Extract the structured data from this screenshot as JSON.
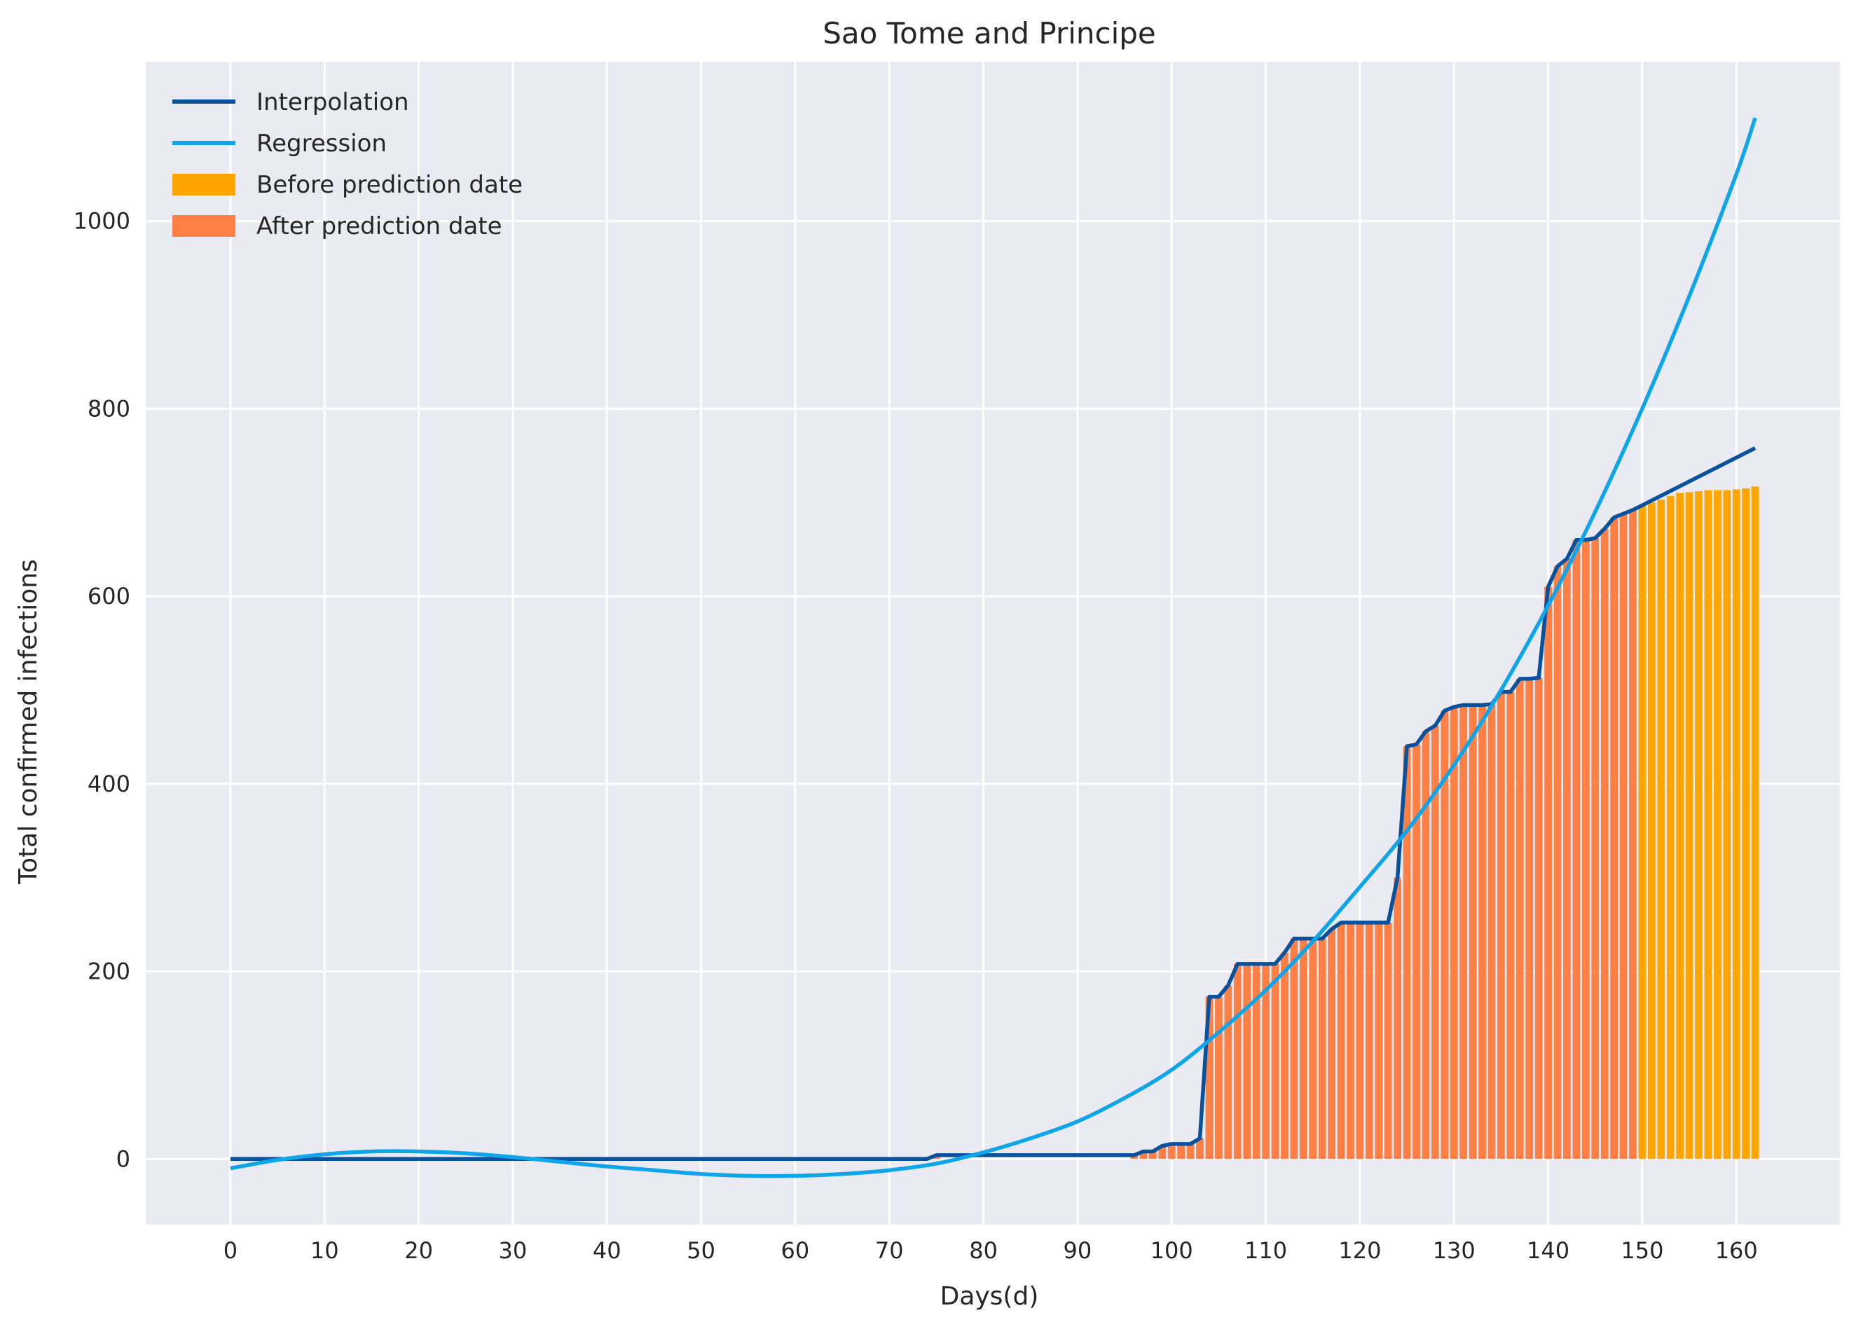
{
  "chart_data": {
    "type": "bar",
    "title": "Sao Tome and Principe",
    "xlabel": "Days(d)",
    "ylabel": "Total confirmed infections",
    "xlim": [
      -9,
      171
    ],
    "ylim": [
      -70,
      1170
    ],
    "x_ticks": [
      0,
      10,
      20,
      30,
      40,
      50,
      60,
      70,
      80,
      90,
      100,
      110,
      120,
      130,
      140,
      150,
      160
    ],
    "y_ticks": [
      0,
      200,
      400,
      600,
      800,
      1000
    ],
    "grid": true,
    "legend_position": "top-left",
    "prediction_day": 150,
    "series": [
      {
        "name": "Interpolation",
        "kind": "line",
        "color": "#08519c"
      },
      {
        "name": "Regression",
        "kind": "line",
        "color": "#0ea5e9"
      },
      {
        "name": "Before prediction date",
        "kind": "bar",
        "color": "#ffa500"
      },
      {
        "name": "After prediction date",
        "kind": "bar",
        "color": "#ff7f45"
      }
    ],
    "actual": {
      "x": [
        0,
        74,
        75,
        96,
        97,
        98,
        99,
        100,
        101,
        102,
        103,
        104,
        105,
        106,
        107,
        108,
        109,
        110,
        111,
        112,
        113,
        114,
        115,
        116,
        117,
        118,
        119,
        120,
        121,
        122,
        123,
        124,
        125,
        126,
        127,
        128,
        129,
        130,
        131,
        132,
        133,
        134,
        135,
        136,
        137,
        138,
        139,
        140,
        141,
        142,
        143,
        144,
        145,
        146,
        147,
        148,
        149,
        150,
        151,
        152,
        153,
        154,
        155,
        156,
        157,
        158,
        159,
        160,
        161,
        162
      ],
      "y": [
        0,
        0,
        4,
        4,
        8,
        8,
        14,
        16,
        16,
        16,
        22,
        173,
        173,
        185,
        208,
        208,
        208,
        208,
        208,
        220,
        235,
        235,
        235,
        235,
        245,
        252,
        252,
        252,
        252,
        252,
        252,
        300,
        440,
        442,
        456,
        462,
        478,
        482,
        484,
        484,
        484,
        485,
        498,
        498,
        512,
        512,
        513,
        610,
        632,
        640,
        660,
        660,
        662,
        672,
        684,
        688,
        692,
        697,
        700,
        703,
        707,
        710,
        711,
        712,
        713,
        713,
        713,
        714,
        715,
        717
      ]
    },
    "interpolation": {
      "x": [
        0,
        74,
        75,
        96,
        97,
        98,
        99,
        100,
        101,
        102,
        103,
        104,
        105,
        106,
        107,
        108,
        109,
        110,
        111,
        112,
        113,
        114,
        115,
        116,
        117,
        118,
        119,
        120,
        121,
        122,
        123,
        124,
        125,
        126,
        127,
        128,
        129,
        130,
        131,
        132,
        133,
        134,
        135,
        136,
        137,
        138,
        139,
        140,
        141,
        142,
        143,
        144,
        145,
        146,
        147,
        148,
        149,
        150,
        162
      ],
      "y": [
        0,
        0,
        4,
        4,
        8,
        8,
        14,
        16,
        16,
        16,
        22,
        173,
        173,
        185,
        208,
        208,
        208,
        208,
        208,
        220,
        235,
        235,
        235,
        235,
        245,
        252,
        252,
        252,
        252,
        252,
        252,
        300,
        440,
        442,
        456,
        462,
        478,
        482,
        484,
        484,
        484,
        485,
        498,
        498,
        512,
        512,
        513,
        610,
        632,
        640,
        660,
        660,
        662,
        672,
        684,
        688,
        692,
        697,
        758
      ]
    },
    "regression": {
      "x": [
        0,
        5,
        10,
        15,
        20,
        25,
        30,
        35,
        40,
        45,
        50,
        55,
        60,
        65,
        70,
        75,
        80,
        85,
        90,
        95,
        100,
        105,
        110,
        115,
        120,
        125,
        130,
        135,
        140,
        145,
        150,
        155,
        160,
        162
      ],
      "y": [
        -10,
        -1,
        5,
        8,
        8,
        6,
        2,
        -3,
        -8,
        -12,
        -16,
        -18,
        -18,
        -16,
        -12,
        -5,
        7,
        22,
        40,
        65,
        95,
        135,
        180,
        232,
        290,
        350,
        420,
        500,
        590,
        690,
        800,
        920,
        1050,
        1110
      ]
    }
  }
}
